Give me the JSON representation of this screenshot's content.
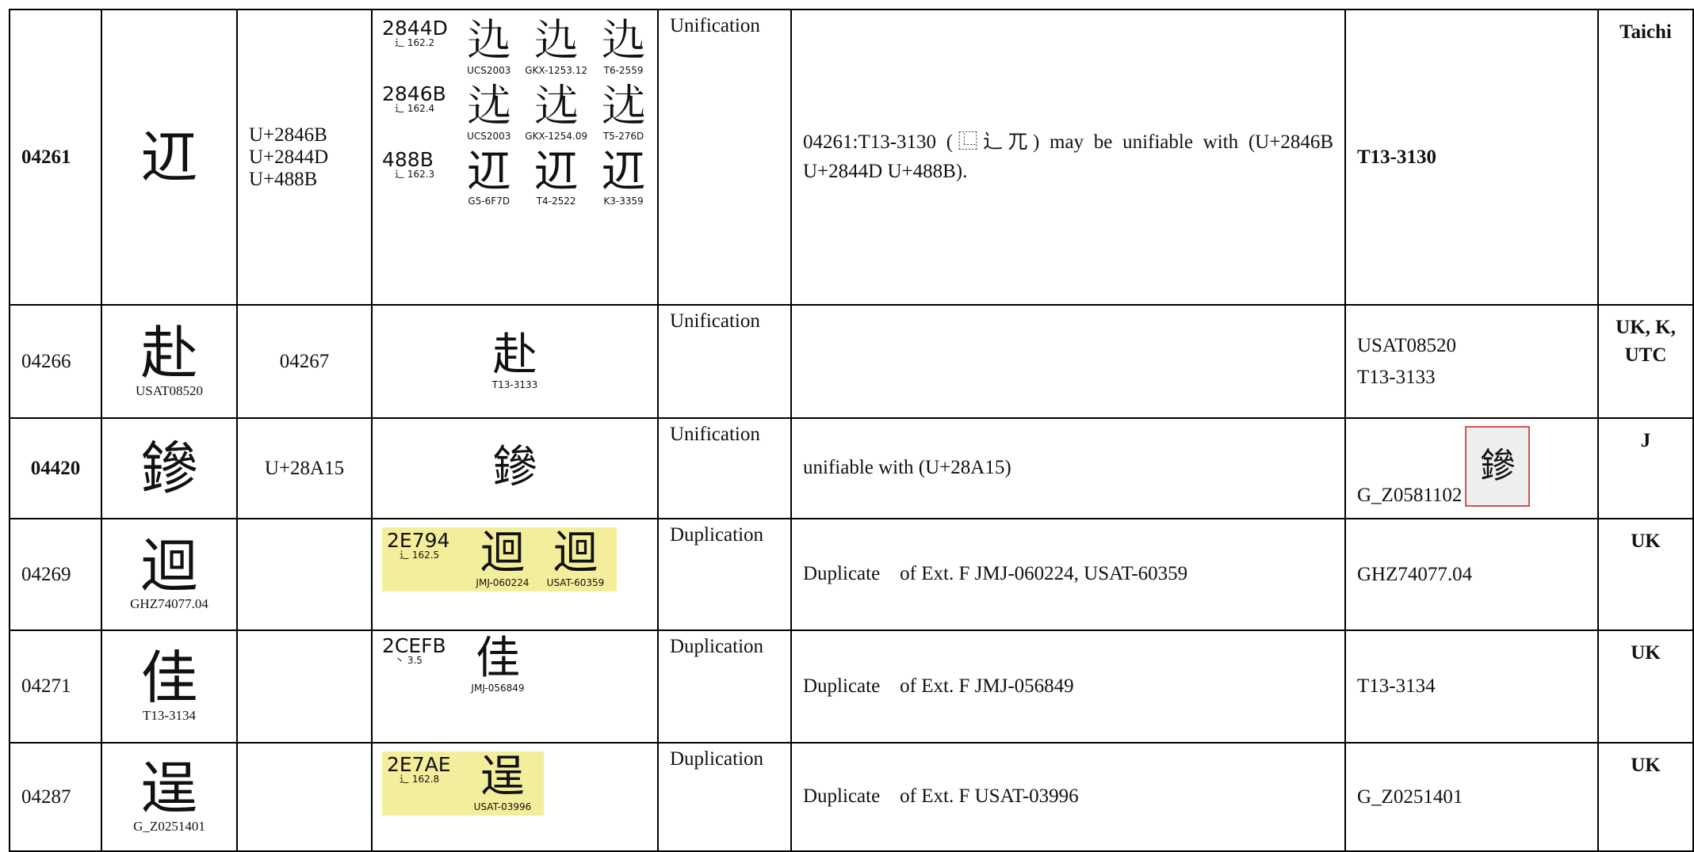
{
  "table": {
    "rows": [
      {
        "id": "04261",
        "glyph": "䢋",
        "glyph_source": null,
        "related": [
          "U+2846B",
          "U+2844D",
          "U+488B"
        ],
        "evidence": [
          {
            "code": "2844D",
            "radical": "辶 162.2",
            "glyphs": [
              {
                "char": "𨑍",
                "source": "UCS2003"
              },
              {
                "char": "𨑍",
                "source": "GKX-1253.12"
              },
              {
                "char": "𨑍",
                "source": "T6-2559"
              }
            ]
          },
          {
            "code": "2846B",
            "radical": "辶 162.4",
            "glyphs": [
              {
                "char": "𨑫",
                "source": "UCS2003"
              },
              {
                "char": "𨑫",
                "source": "GKX-1254.09"
              },
              {
                "char": "𨑫",
                "source": "T5-276D"
              }
            ]
          },
          {
            "code": "488B",
            "radical": "辶 162.3",
            "glyphs": [
              {
                "char": "䢋",
                "source": "G5-6F7D"
              },
              {
                "char": "䢋",
                "source": "T4-2522"
              },
              {
                "char": "䢋",
                "source": "K3-3359"
              }
            ]
          }
        ],
        "type": "Unification",
        "remarks": "04261:T13-3130 (⿺辶兀) may be unifiable with (U+2846B U+2844D U+488B).",
        "sources": [
          "T13-3130"
        ],
        "stamp": null,
        "reviewer": "Taichi"
      },
      {
        "id": "04266",
        "glyph": "赴",
        "glyph_source": "USAT08520",
        "related": [
          "04267"
        ],
        "evidence": [
          {
            "code": null,
            "radical": null,
            "glyphs": [
              {
                "char": "赴",
                "source": "T13-3133"
              }
            ]
          }
        ],
        "type": "Unification",
        "remarks": null,
        "sources": [
          "USAT08520",
          "T13-3133"
        ],
        "stamp": null,
        "reviewer": "UK, K, UTC"
      },
      {
        "id": "04420",
        "glyph": "鏒",
        "glyph_source": null,
        "related": [
          "U+28A15"
        ],
        "evidence": [
          {
            "code": null,
            "radical": null,
            "glyphs": [
              {
                "char": "鏒",
                "source": null
              }
            ]
          }
        ],
        "type": "Unification",
        "remarks": "unifiable with (U+28A15)",
        "sources": [
          "G_Z0581102"
        ],
        "stamp": "鏒",
        "reviewer": "J"
      },
      {
        "id": "04269",
        "glyph": "迴",
        "glyph_source": "GHZ74077.04",
        "related": [],
        "evidence": [
          {
            "code": "2E794",
            "radical": "辶 162.5",
            "highlight": true,
            "glyphs": [
              {
                "char": "迴",
                "source": "JMJ-060224"
              },
              {
                "char": "迴",
                "source": "USAT-60359"
              }
            ]
          }
        ],
        "type": "Duplication",
        "remarks": "Duplicate　of Ext. F JMJ-060224, USAT-60359",
        "sources": [
          "GHZ74077.04"
        ],
        "stamp": null,
        "reviewer": "UK"
      },
      {
        "id": "04271",
        "glyph": "佳",
        "glyph_source": "T13-3134",
        "related": [],
        "evidence": [
          {
            "code": "2CEFB",
            "radical": "丶 3.5",
            "glyphs": [
              {
                "char": "佳",
                "source": "JMJ-056849"
              }
            ]
          }
        ],
        "type": "Duplication",
        "remarks": "Duplicate　of Ext. F JMJ-056849",
        "sources": [
          "T13-3134"
        ],
        "stamp": null,
        "reviewer": "UK"
      },
      {
        "id": "04287",
        "glyph": "逞",
        "glyph_source": "G_Z0251401",
        "related": [],
        "evidence": [
          {
            "code": "2E7AE",
            "radical": "辶 162.8",
            "highlight": true,
            "glyphs": [
              {
                "char": "逞",
                "source": "USAT-03996"
              }
            ]
          }
        ],
        "type": "Duplication",
        "remarks": "Duplicate　of Ext. F USAT-03996",
        "sources": [
          "G_Z0251401"
        ],
        "stamp": null,
        "reviewer": "UK"
      }
    ]
  }
}
